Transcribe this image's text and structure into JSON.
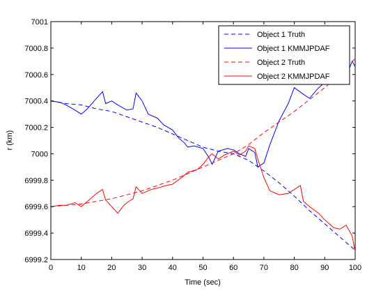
{
  "chart_data": {
    "type": "line",
    "xlabel": "Time (sec)",
    "ylabel": "r (km)",
    "xlim": [
      0,
      100
    ],
    "ylim": [
      6999.2,
      7001
    ],
    "xticks": [
      "0",
      "10",
      "20",
      "30",
      "40",
      "50",
      "60",
      "70",
      "80",
      "90",
      "100"
    ],
    "yticks": [
      "6999.2",
      "6999.4",
      "6999.6",
      "6999.8",
      "7000",
      "7000.2",
      "7000.4",
      "7000.6",
      "7000.8",
      "7001"
    ],
    "grid": false,
    "legend_position": "top-right",
    "series": [
      {
        "name": "Object 1 Truth",
        "color": "#0000ff",
        "dash": "dashed",
        "x": [
          0,
          5,
          10,
          15,
          20,
          25,
          30,
          35,
          40,
          45,
          50,
          55,
          60,
          65,
          70,
          75,
          80,
          85,
          90,
          95,
          100
        ],
        "y": [
          7000.4,
          7000.38,
          7000.37,
          7000.34,
          7000.32,
          7000.28,
          7000.24,
          7000.2,
          7000.15,
          7000.1,
          7000.05,
          7000.02,
          7000,
          6999.95,
          6999.87,
          6999.78,
          6999.68,
          6999.57,
          6999.47,
          6999.37,
          6999.27
        ]
      },
      {
        "name": "Object 1 KMMJPDAF",
        "color": "#0000ff",
        "dash": "solid",
        "x": [
          0,
          3,
          5,
          8,
          10,
          12,
          15,
          17,
          18,
          20,
          22,
          25,
          27,
          28,
          30,
          32,
          35,
          37,
          40,
          42,
          44,
          45,
          47,
          50,
          52,
          53,
          55,
          58,
          60,
          62,
          64,
          65,
          67,
          68,
          70,
          72,
          75,
          78,
          80,
          83,
          85,
          88,
          90,
          93,
          95,
          97,
          99,
          100
        ],
        "y": [
          7000.4,
          7000.39,
          7000.37,
          7000.33,
          7000.3,
          7000.34,
          7000.42,
          7000.47,
          7000.38,
          7000.4,
          7000.37,
          7000.33,
          7000.34,
          7000.46,
          7000.4,
          7000.3,
          7000.27,
          7000.22,
          7000.18,
          7000.12,
          7000.08,
          7000.05,
          7000.06,
          7000.04,
          6999.97,
          6999.92,
          7000.02,
          7000.04,
          7000.03,
          7000,
          6999.98,
          7000.04,
          7000.01,
          6999.9,
          6999.93,
          7000.07,
          7000.25,
          7000.38,
          7000.5,
          7000.45,
          7000.42,
          7000.5,
          7000.54,
          7000.53,
          7000.56,
          7000.58,
          7000.7,
          7000.66
        ]
      },
      {
        "name": "Object 2 Truth",
        "color": "#ff0000",
        "dash": "dashed",
        "x": [
          0,
          5,
          10,
          15,
          20,
          25,
          30,
          35,
          40,
          45,
          50,
          55,
          60,
          65,
          70,
          75,
          80,
          85,
          90,
          95,
          100
        ],
        "y": [
          6999.6,
          6999.61,
          6999.62,
          6999.64,
          6999.66,
          6999.69,
          6999.72,
          6999.76,
          6999.8,
          6999.85,
          6999.9,
          6999.95,
          7000,
          7000.07,
          7000.16,
          7000.24,
          7000.32,
          7000.41,
          7000.5,
          7000.6,
          7000.72
        ]
      },
      {
        "name": "Object 2 KMMJPDAF",
        "color": "#ff0000",
        "dash": "solid",
        "x": [
          0,
          3,
          5,
          8,
          10,
          13,
          15,
          17,
          18,
          20,
          22,
          24,
          25,
          27,
          28,
          30,
          33,
          35,
          38,
          40,
          43,
          45,
          48,
          50,
          52,
          53,
          55,
          57,
          60,
          62,
          64,
          65,
          67,
          68,
          70,
          72,
          75,
          78,
          80,
          82,
          83,
          85,
          88,
          90,
          93,
          95,
          97,
          99,
          100
        ],
        "y": [
          6999.6,
          6999.61,
          6999.61,
          6999.63,
          6999.6,
          6999.66,
          6999.7,
          6999.73,
          6999.65,
          6999.6,
          6999.55,
          6999.61,
          6999.63,
          6999.66,
          6999.75,
          6999.7,
          6999.73,
          6999.74,
          6999.76,
          6999.77,
          6999.82,
          6999.86,
          6999.88,
          6999.92,
          6999.98,
          7000,
          6999.96,
          6999.99,
          7000.02,
          6999.99,
          7000.02,
          7000.06,
          7000.04,
          6999.96,
          6999.82,
          6999.72,
          6999.69,
          6999.7,
          6999.73,
          6999.76,
          6999.64,
          6999.6,
          6999.55,
          6999.5,
          6999.44,
          6999.43,
          6999.46,
          6999.38,
          6999.26
        ]
      }
    ]
  }
}
